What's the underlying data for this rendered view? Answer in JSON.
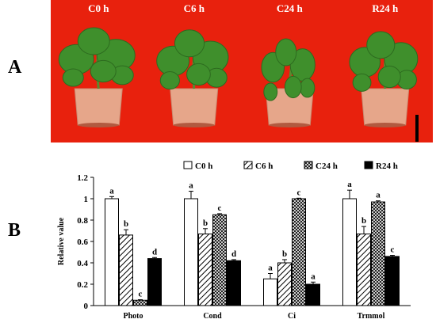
{
  "figure": {
    "panel_a_label": "A",
    "panel_b_label": "B",
    "photos": [
      {
        "label": "C0 h",
        "wilt": 0
      },
      {
        "label": "C6 h",
        "wilt": 0.2
      },
      {
        "label": "C24 h",
        "wilt": 1
      },
      {
        "label": "R24 h",
        "wilt": 0.35
      }
    ],
    "photo_background": "#e8210d",
    "leaf_color": "#3f8f2c",
    "pot_color": "#e6a68a"
  },
  "chart_data": {
    "type": "bar",
    "categories": [
      "Photo",
      "Cond",
      "Ci",
      "Trmmol"
    ],
    "ylabel": "Relative value",
    "xlabel": "",
    "ylim": [
      0,
      1.2
    ],
    "yticks": [
      "0",
      "0.2",
      "0.4",
      "0.6",
      "0.8",
      "1",
      "1.2"
    ],
    "legend_position": "top",
    "series": [
      {
        "name": "C0 h",
        "pattern": "white",
        "values": [
          1.0,
          1.0,
          0.25,
          1.0
        ],
        "errors": [
          0.02,
          0.07,
          0.05,
          0.08
        ],
        "letters": [
          "a",
          "a",
          "a",
          "a"
        ]
      },
      {
        "name": "C6 h",
        "pattern": "diagonal",
        "values": [
          0.66,
          0.67,
          0.4,
          0.67
        ],
        "errors": [
          0.05,
          0.05,
          0.03,
          0.07
        ],
        "letters": [
          "b",
          "b",
          "b",
          "b"
        ]
      },
      {
        "name": "C24 h",
        "pattern": "crosshatch",
        "values": [
          0.05,
          0.85,
          1.0,
          0.97
        ],
        "errors": [
          0.005,
          0.01,
          0.005,
          0.01
        ],
        "letters": [
          "c",
          "c",
          "c",
          "a"
        ]
      },
      {
        "name": "R24 h",
        "pattern": "black",
        "values": [
          0.44,
          0.42,
          0.2,
          0.46
        ],
        "errors": [
          0.01,
          0.01,
          0.02,
          0.01
        ],
        "letters": [
          "d",
          "d",
          "a",
          "c"
        ]
      }
    ]
  }
}
